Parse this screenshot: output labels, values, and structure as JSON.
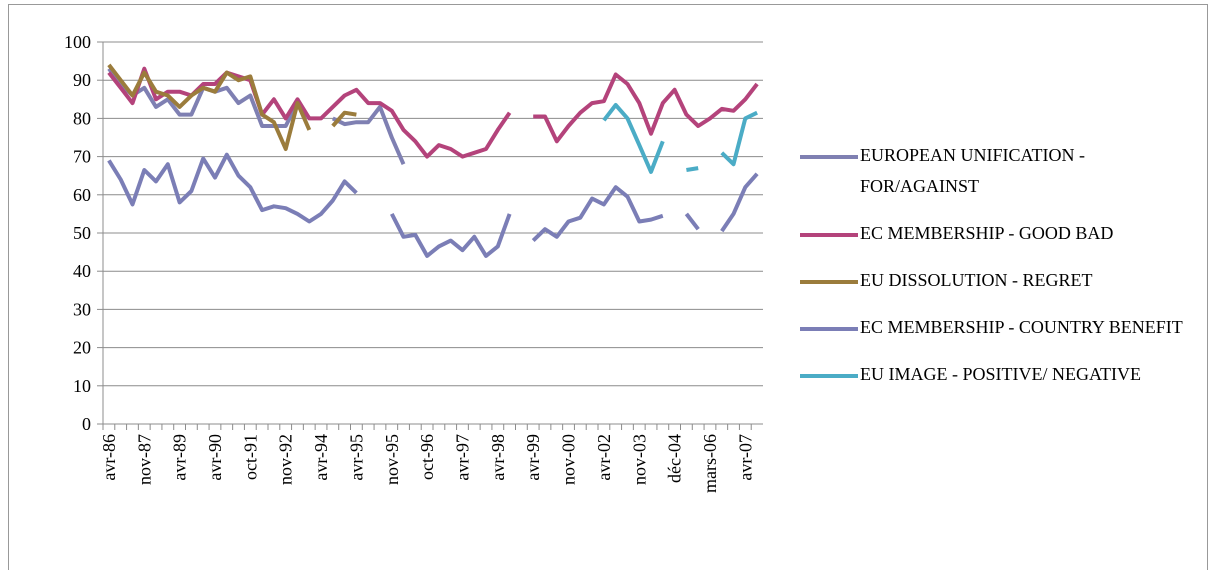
{
  "chart_data": {
    "type": "line",
    "categories": [
      "avr-86",
      null,
      null,
      "nov-87",
      null,
      null,
      "avr-89",
      null,
      null,
      "avr-90",
      null,
      null,
      "oct-91",
      null,
      null,
      "nov-92",
      null,
      null,
      "avr-94",
      null,
      null,
      "avr-95",
      null,
      null,
      "nov-95",
      null,
      null,
      "oct-96",
      null,
      null,
      "avr-97",
      null,
      null,
      "avr-98",
      null,
      null,
      "avr-99",
      null,
      null,
      "nov-00",
      null,
      null,
      "avr-02",
      null,
      null,
      "nov-03",
      null,
      null,
      "déc-04",
      null,
      null,
      "mars-06",
      null,
      null,
      "avr-07",
      null
    ],
    "series": [
      {
        "name": "EUROPEAN UNIFICATION - FOR/AGAINST",
        "color": "#7f80b2",
        "values": [
          93,
          89,
          86,
          88,
          83,
          85,
          81,
          81,
          88,
          87,
          88,
          84,
          86,
          78,
          78,
          78,
          84,
          80,
          null,
          80,
          78.5,
          79,
          79,
          83,
          75,
          68,
          null,
          null,
          null,
          null,
          null,
          null,
          null,
          null,
          null,
          null,
          null,
          null,
          null,
          null,
          null,
          null,
          null,
          null,
          null,
          null,
          null,
          null,
          null,
          null,
          null,
          null,
          null,
          null,
          null,
          null
        ]
      },
      {
        "name": "EC MEMBERSHIP - GOOD BAD",
        "color": "#b4437b",
        "values": [
          92,
          88,
          84,
          93,
          85,
          87,
          87,
          86,
          89,
          89,
          92,
          91,
          90,
          81,
          85,
          80,
          85,
          80,
          80,
          83,
          86,
          87.5,
          84,
          84,
          82,
          77,
          74,
          70,
          73,
          72,
          70,
          71,
          72,
          77,
          81.5,
          null,
          80.5,
          80.5,
          74,
          78,
          81.5,
          84,
          84.5,
          91.5,
          89,
          84,
          76,
          84,
          87.5,
          81,
          78,
          80,
          82.5,
          82,
          85,
          89
        ]
      },
      {
        "name": "EU DISSOLUTION - REGRET",
        "color": "#9b7c3c",
        "values": [
          94,
          90,
          86,
          92,
          87,
          86,
          83,
          86,
          88,
          87,
          92,
          90,
          91,
          81,
          79,
          72,
          84,
          77,
          null,
          78,
          81.5,
          81,
          null,
          null,
          null,
          null,
          null,
          null,
          null,
          null,
          null,
          null,
          null,
          null,
          null,
          null,
          null,
          null,
          null,
          null,
          null,
          null,
          null,
          null,
          null,
          null,
          null,
          null,
          null,
          null,
          null,
          null,
          null,
          null,
          null,
          null
        ]
      },
      {
        "name": "EC MEMBERSHIP - COUNTRY BENEFIT",
        "color": "#7b7eb6",
        "values": [
          69,
          64,
          57.5,
          66.5,
          63.5,
          68,
          58,
          61,
          69.5,
          64.5,
          70.5,
          65,
          62,
          56,
          57,
          56.5,
          55,
          53,
          55,
          58.5,
          63.5,
          60.5,
          null,
          null,
          55,
          49,
          49.5,
          44,
          46.5,
          48,
          45.5,
          49,
          44,
          46.5,
          55,
          null,
          48,
          51,
          49,
          53,
          54,
          59,
          57.5,
          62,
          59.5,
          53,
          53.5,
          54.5,
          null,
          55,
          51,
          null,
          50.5,
          55,
          62,
          65.5
        ]
      },
      {
        "name": "EU IMAGE - POSITIVE/ NEGATIVE",
        "color": "#4bacc6",
        "values": [
          null,
          null,
          null,
          null,
          null,
          null,
          null,
          null,
          null,
          null,
          null,
          null,
          null,
          null,
          null,
          null,
          null,
          null,
          null,
          null,
          null,
          null,
          null,
          null,
          null,
          null,
          null,
          null,
          null,
          null,
          null,
          null,
          null,
          null,
          null,
          null,
          null,
          null,
          null,
          null,
          null,
          null,
          79.5,
          83.5,
          80,
          73,
          66,
          74,
          null,
          66.5,
          67,
          null,
          71,
          68,
          80,
          81.5
        ]
      }
    ],
    "ylim": [
      0,
      100
    ],
    "yticks": [
      0,
      10,
      20,
      30,
      40,
      50,
      60,
      70,
      80,
      90,
      100
    ],
    "grid": true,
    "legend": "right"
  }
}
